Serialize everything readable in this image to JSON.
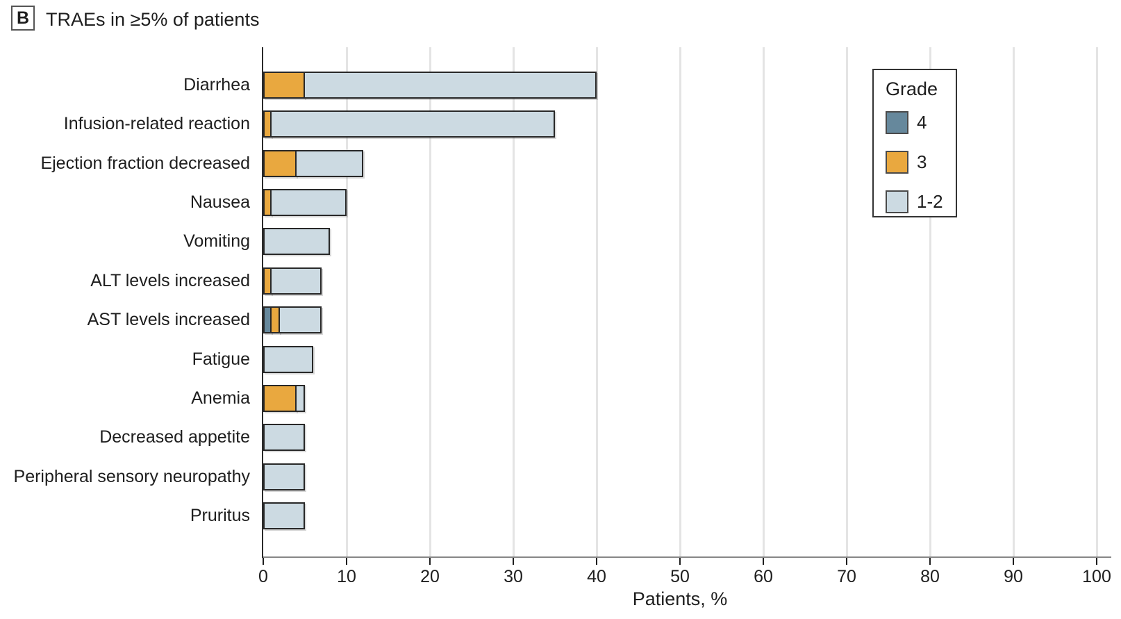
{
  "header": {
    "panel_label": "B",
    "title": "TRAEs in ≥5% of patients"
  },
  "chart_data": {
    "type": "bar",
    "orientation": "horizontal",
    "stacked": true,
    "title": "TRAEs in ≥5% of patients",
    "xlabel": "Patients, %",
    "xlim": [
      0,
      100
    ],
    "xticks": [
      0,
      10,
      20,
      30,
      40,
      50,
      60,
      70,
      80,
      90,
      100
    ],
    "grid": "vertical",
    "legend": {
      "title": "Grade",
      "position": "upper-right"
    },
    "categories": [
      "Diarrhea",
      "Infusion-related reaction",
      "Ejection fraction decreased",
      "Nausea",
      "Vomiting",
      "ALT levels increased",
      "AST levels increased",
      "Fatigue",
      "Anemia",
      "Decreased appetite",
      "Peripheral sensory neuropathy",
      "Pruritus"
    ],
    "series": [
      {
        "name": "4",
        "color": "#66889c",
        "values": [
          0,
          0,
          0,
          0,
          0,
          0,
          1,
          0,
          0,
          0,
          0,
          0
        ]
      },
      {
        "name": "3",
        "color": "#e9a83f",
        "values": [
          5,
          1,
          4,
          1,
          0,
          1,
          1,
          0,
          4,
          0,
          0,
          0
        ]
      },
      {
        "name": "1-2",
        "color": "#ccdae2",
        "values": [
          35,
          34,
          8,
          9,
          8,
          6,
          5,
          6,
          1,
          5,
          5,
          5
        ]
      }
    ],
    "totals": [
      40,
      35,
      12,
      10,
      8,
      7,
      7,
      6,
      5,
      5,
      5,
      5
    ]
  },
  "colors": {
    "grade4": "#66889c",
    "grade3": "#e9a83f",
    "grade12": "#ccdae2",
    "bar_border": "#282828",
    "gridline": "#e4e4e4",
    "axis_line": "#868686",
    "text": "#1e1e1e"
  }
}
